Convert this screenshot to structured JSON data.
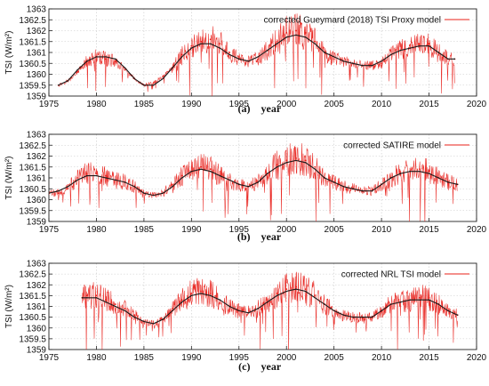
{
  "chart_data": [
    {
      "type": "line",
      "ylabel": "TSI (W/m²)",
      "caption_tag": "(a)",
      "caption_text": "year",
      "xlim": [
        1975,
        2020
      ],
      "ylim": [
        1359,
        1363
      ],
      "x_ticks": [
        1975,
        1980,
        1985,
        1990,
        1995,
        2000,
        2005,
        2010,
        2015,
        2020
      ],
      "y_ticks": [
        1359,
        1359.5,
        1360,
        1360.5,
        1361,
        1361.5,
        1362,
        1362.5,
        1363
      ],
      "legend_position": "top-right",
      "series": [
        {
          "name": "corrected Gueymard (2018) TSI Proxy model",
          "color": "#e8201a",
          "x": [
            1976,
            1977,
            1978,
            1979,
            1980,
            1981,
            1982,
            1983,
            1984,
            1985,
            1986,
            1987,
            1988,
            1989,
            1990,
            1991,
            1992,
            1993,
            1994,
            1995,
            1996,
            1997,
            1998,
            1999,
            2000,
            2001,
            2002,
            2003,
            2004,
            2005,
            2006,
            2007,
            2008,
            2009,
            2010,
            2011,
            2012,
            2013,
            2014,
            2015,
            2016,
            2017,
            2017.7
          ],
          "values": [
            1359.5,
            1359.7,
            1360.1,
            1360.6,
            1360.8,
            1360.7,
            1360.6,
            1360.2,
            1359.8,
            1359.5,
            1359.6,
            1359.9,
            1360.3,
            1360.9,
            1361.3,
            1361.5,
            1361.6,
            1361.4,
            1361.0,
            1360.7,
            1360.6,
            1360.7,
            1361.1,
            1361.5,
            1361.9,
            1362.0,
            1361.9,
            1361.5,
            1361.0,
            1360.7,
            1360.6,
            1360.5,
            1360.4,
            1360.4,
            1360.5,
            1360.9,
            1361.1,
            1361.2,
            1361.4,
            1361.4,
            1361.0,
            1360.7,
            1360.7
          ]
        },
        {
          "name": "",
          "color": "#1a1a1a",
          "x": [
            1976,
            1977,
            1978,
            1979,
            1980,
            1981,
            1982,
            1983,
            1984,
            1985,
            1986,
            1987,
            1988,
            1989,
            1990,
            1991,
            1992,
            1993,
            1994,
            1995,
            1996,
            1997,
            1998,
            1999,
            2000,
            2001,
            2002,
            2003,
            2004,
            2005,
            2006,
            2007,
            2008,
            2009,
            2010,
            2011,
            2012,
            2013,
            2014,
            2015,
            2016,
            2017,
            2017.7
          ],
          "values": [
            1359.5,
            1359.7,
            1360.2,
            1360.6,
            1360.8,
            1360.8,
            1360.7,
            1360.3,
            1359.8,
            1359.5,
            1359.5,
            1359.8,
            1360.3,
            1360.8,
            1361.2,
            1361.4,
            1361.4,
            1361.2,
            1360.9,
            1360.7,
            1360.6,
            1360.8,
            1361.1,
            1361.4,
            1361.7,
            1361.8,
            1361.7,
            1361.4,
            1361.0,
            1360.8,
            1360.6,
            1360.5,
            1360.4,
            1360.4,
            1360.6,
            1360.9,
            1361.1,
            1361.2,
            1361.3,
            1361.3,
            1361.0,
            1360.7,
            1360.7
          ]
        }
      ]
    },
    {
      "type": "line",
      "ylabel": "TSI (W/m²)",
      "caption_tag": "(b)",
      "caption_text": "year",
      "xlim": [
        1975,
        2020
      ],
      "ylim": [
        1359,
        1363
      ],
      "x_ticks": [
        1975,
        1980,
        1985,
        1990,
        1995,
        2000,
        2005,
        2010,
        2015,
        2020
      ],
      "y_ticks": [
        1359,
        1359.5,
        1360,
        1360.5,
        1361,
        1361.5,
        1362,
        1362.5,
        1363
      ],
      "legend_position": "top-right",
      "series": [
        {
          "name": "corrected SATIRE model",
          "color": "#e8201a",
          "x": [
            1975,
            1976,
            1977,
            1978,
            1979,
            1980,
            1981,
            1982,
            1983,
            1984,
            1985,
            1986,
            1987,
            1988,
            1989,
            1990,
            1991,
            1992,
            1993,
            1994,
            1995,
            1996,
            1997,
            1998,
            1999,
            2000,
            2001,
            2002,
            2003,
            2004,
            2005,
            2006,
            2007,
            2008,
            2009,
            2010,
            2011,
            2012,
            2013,
            2014,
            2015,
            2016,
            2017,
            2018
          ],
          "values": [
            1360.3,
            1360.3,
            1360.5,
            1361.0,
            1361.2,
            1361.2,
            1361.1,
            1360.9,
            1360.8,
            1360.6,
            1360.3,
            1360.2,
            1360.3,
            1360.7,
            1361.1,
            1361.3,
            1361.5,
            1361.4,
            1361.1,
            1360.9,
            1360.7,
            1360.6,
            1360.8,
            1361.2,
            1361.6,
            1361.8,
            1361.9,
            1361.8,
            1361.5,
            1361.0,
            1360.8,
            1360.6,
            1360.5,
            1360.4,
            1360.4,
            1360.7,
            1361.0,
            1361.2,
            1361.3,
            1361.4,
            1361.3,
            1361.0,
            1360.8,
            1360.7
          ]
        },
        {
          "name": "",
          "color": "#1a1a1a",
          "x": [
            1975,
            1976,
            1977,
            1978,
            1979,
            1980,
            1981,
            1982,
            1983,
            1984,
            1985,
            1986,
            1987,
            1988,
            1989,
            1990,
            1991,
            1992,
            1993,
            1994,
            1995,
            1996,
            1997,
            1998,
            1999,
            2000,
            2001,
            2002,
            2003,
            2004,
            2005,
            2006,
            2007,
            2008,
            2009,
            2010,
            2011,
            2012,
            2013,
            2014,
            2015,
            2016,
            2017,
            2018
          ],
          "values": [
            1360.3,
            1360.4,
            1360.6,
            1360.9,
            1361.1,
            1361.1,
            1361.0,
            1360.9,
            1360.8,
            1360.6,
            1360.3,
            1360.2,
            1360.3,
            1360.6,
            1361.0,
            1361.3,
            1361.4,
            1361.3,
            1361.1,
            1360.9,
            1360.7,
            1360.6,
            1360.8,
            1361.2,
            1361.5,
            1361.7,
            1361.8,
            1361.7,
            1361.4,
            1361.0,
            1360.8,
            1360.6,
            1360.5,
            1360.4,
            1360.4,
            1360.7,
            1361.0,
            1361.2,
            1361.3,
            1361.3,
            1361.2,
            1361.0,
            1360.8,
            1360.7
          ]
        }
      ]
    },
    {
      "type": "line",
      "ylabel": "TSI (W/m²)",
      "caption_tag": "(c)",
      "caption_text": "year",
      "xlim": [
        1975,
        2020
      ],
      "ylim": [
        1359,
        1363
      ],
      "x_ticks": [
        1975,
        1980,
        1985,
        1990,
        1995,
        2000,
        2005,
        2010,
        2015,
        2020
      ],
      "y_ticks": [
        1359,
        1359.5,
        1360,
        1360.5,
        1361,
        1361.5,
        1362,
        1362.5,
        1363
      ],
      "legend_position": "top-right",
      "series": [
        {
          "name": "corrected NRL TSI model",
          "color": "#e8201a",
          "x": [
            1978.5,
            1979,
            1980,
            1981,
            1982,
            1983,
            1984,
            1985,
            1986,
            1987,
            1988,
            1989,
            1990,
            1991,
            1992,
            1993,
            1994,
            1995,
            1996,
            1997,
            1998,
            1999,
            2000,
            2001,
            2002,
            2003,
            2004,
            2005,
            2006,
            2007,
            2008,
            2009,
            2010,
            2011,
            2012,
            2013,
            2014,
            2015,
            2016,
            2017,
            2018
          ],
          "values": [
            1361.4,
            1361.5,
            1361.5,
            1361.3,
            1361.1,
            1360.9,
            1360.6,
            1360.3,
            1360.2,
            1360.4,
            1360.9,
            1361.3,
            1361.6,
            1361.7,
            1361.6,
            1361.3,
            1361.0,
            1360.8,
            1360.7,
            1360.9,
            1361.2,
            1361.6,
            1361.8,
            1361.9,
            1361.8,
            1361.5,
            1361.1,
            1360.8,
            1360.6,
            1360.5,
            1360.5,
            1360.5,
            1360.8,
            1361.1,
            1361.2,
            1361.3,
            1361.4,
            1361.4,
            1361.1,
            1360.8,
            1360.6
          ]
        },
        {
          "name": "",
          "color": "#1a1a1a",
          "x": [
            1978.5,
            1979,
            1980,
            1981,
            1982,
            1983,
            1984,
            1985,
            1986,
            1987,
            1988,
            1989,
            1990,
            1991,
            1992,
            1993,
            1994,
            1995,
            1996,
            1997,
            1998,
            1999,
            2000,
            2001,
            2002,
            2003,
            2004,
            2005,
            2006,
            2007,
            2008,
            2009,
            2010,
            2011,
            2012,
            2013,
            2014,
            2015,
            2016,
            2017,
            2018
          ],
          "values": [
            1361.4,
            1361.4,
            1361.4,
            1361.2,
            1361.0,
            1360.8,
            1360.5,
            1360.3,
            1360.2,
            1360.4,
            1360.8,
            1361.2,
            1361.5,
            1361.6,
            1361.5,
            1361.3,
            1361.0,
            1360.8,
            1360.7,
            1360.9,
            1361.2,
            1361.5,
            1361.7,
            1361.8,
            1361.7,
            1361.4,
            1361.1,
            1360.8,
            1360.6,
            1360.5,
            1360.5,
            1360.5,
            1360.8,
            1361.1,
            1361.2,
            1361.3,
            1361.3,
            1361.3,
            1361.1,
            1360.8,
            1360.6
          ]
        }
      ]
    }
  ]
}
